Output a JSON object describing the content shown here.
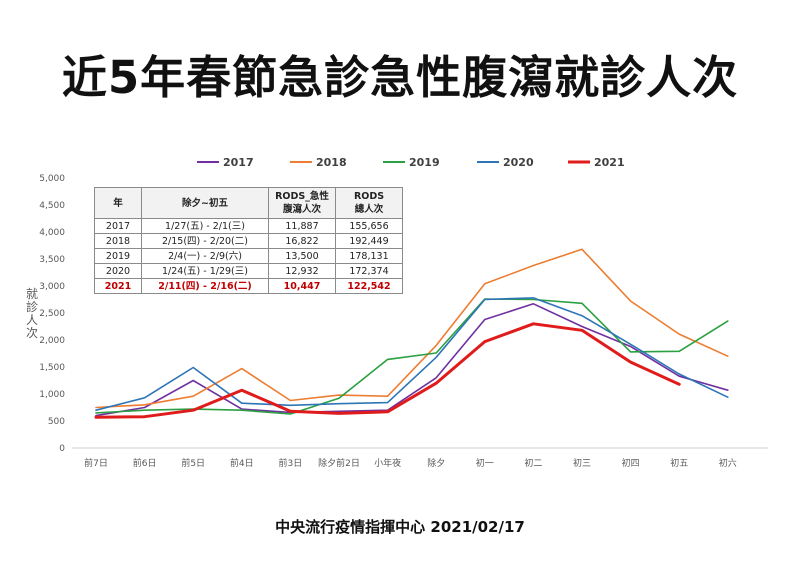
{
  "title": "近5年春節急診急性腹瀉就診人次",
  "footer": "中央流行疫情指揮中心 2021/02/17",
  "colors": {
    "2017": "#7030a0",
    "2018": "#ed7d31",
    "2019": "#2aa040",
    "2020": "#2e75b6",
    "2021": "#e01b1b"
  },
  "chart_data": {
    "type": "line",
    "title": "近5年春節急診急性腹瀉就診人次",
    "xlabel": "",
    "ylabel": "就診人次",
    "ylim": [
      0,
      5000
    ],
    "yticks": [
      "0",
      "500",
      "1,000",
      "1,500",
      "2,000",
      "2,500",
      "3,000",
      "3,500",
      "4,000",
      "4,500",
      "5,000"
    ],
    "ytick_values": [
      0,
      500,
      1000,
      1500,
      2000,
      2500,
      3000,
      3500,
      4000,
      4500,
      5000
    ],
    "grid": false,
    "legend_position": "top",
    "categories": [
      "前7日",
      "前6日",
      "前5日",
      "前4日",
      "前3日",
      "除夕前2日",
      "小年夜",
      "除夕",
      "初一",
      "初二",
      "初三",
      "初四",
      "初五",
      "初六"
    ],
    "series": [
      {
        "name": "2017",
        "values": [
          600,
          750,
          1250,
          720,
          660,
          680,
          700,
          1300,
          2380,
          2670,
          2250,
          1880,
          1330,
          1070
        ]
      },
      {
        "name": "2018",
        "values": [
          750,
          800,
          960,
          1470,
          880,
          980,
          960,
          1900,
          3040,
          3380,
          3680,
          2720,
          2110,
          1700
        ]
      },
      {
        "name": "2019",
        "values": [
          650,
          700,
          720,
          700,
          630,
          920,
          1640,
          1760,
          2760,
          2750,
          2680,
          1780,
          1790,
          2350
        ]
      },
      {
        "name": "2020",
        "values": [
          700,
          930,
          1490,
          830,
          790,
          820,
          840,
          1680,
          2750,
          2780,
          2450,
          1920,
          1370,
          940
        ]
      },
      {
        "name": "2021",
        "values": [
          570,
          580,
          700,
          1070,
          680,
          640,
          670,
          1200,
          1970,
          2300,
          2180,
          1590,
          1180,
          null
        ]
      }
    ]
  },
  "table": {
    "headers": [
      "年",
      "除夕~初五",
      "RODS_急性\n腹瀉人次",
      "RODS\n總人次"
    ],
    "rows": [
      [
        "2017",
        "1/27(五) - 2/1(三)",
        "11,887",
        "155,656"
      ],
      [
        "2018",
        "2/15(四) - 2/20(二)",
        "16,822",
        "192,449"
      ],
      [
        "2019",
        "2/4(一) - 2/9(六)",
        "13,500",
        "178,131"
      ],
      [
        "2020",
        "1/24(五) - 1/29(三)",
        "12,932",
        "172,374"
      ],
      [
        "2021",
        "2/11(四) - 2/16(二)",
        "10,447",
        "122,542"
      ]
    ]
  }
}
